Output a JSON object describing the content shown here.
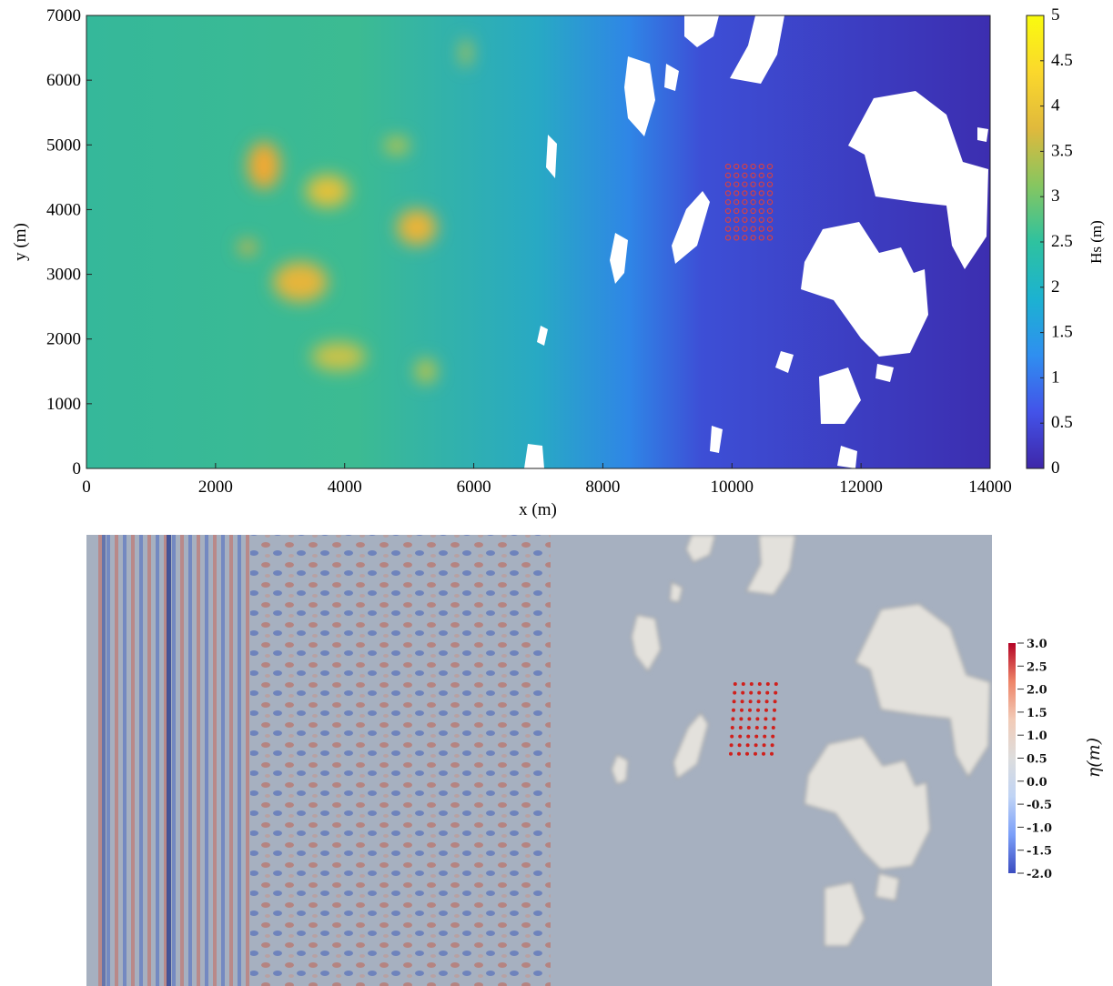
{
  "chart_data": [
    {
      "type": "heatmap",
      "xlabel": "x (m)",
      "ylabel": "y (m)",
      "xlim": [
        0,
        14000
      ],
      "ylim": [
        0,
        7000
      ],
      "xticks": [
        0,
        2000,
        4000,
        6000,
        8000,
        10000,
        12000,
        14000
      ],
      "yticks": [
        0,
        1000,
        2000,
        3000,
        4000,
        5000,
        6000,
        7000
      ],
      "colorbar": {
        "label": "Hs (m)",
        "lim": [
          0,
          5
        ],
        "ticks": [
          0,
          0.5,
          1,
          1.5,
          2,
          2.5,
          3,
          3.5,
          4,
          4.5,
          5
        ],
        "colors": [
          "#3e26a8",
          "#4353e9",
          "#2f8ff0",
          "#1cb2d1",
          "#2ec29f",
          "#86c660",
          "#e0b93c",
          "#fbd82c",
          "#f9fb0e"
        ]
      }
    },
    {
      "type": "heatmap",
      "colorbar": {
        "label": "η(m)",
        "lim": [
          -2.0,
          3.0
        ],
        "ticks": [
          {
            "value": 3.0,
            "label": "3.0"
          },
          {
            "value": 2.5,
            "label": "2.5"
          },
          {
            "value": 2.0,
            "label": "2.0"
          },
          {
            "value": 1.5,
            "label": "1.5"
          },
          {
            "value": 1.0,
            "label": "1.0"
          },
          {
            "value": 0.5,
            "label": "0.5"
          },
          {
            "value": 0.0,
            "label": "0.0"
          },
          {
            "value": -0.5,
            "label": "-0.5"
          },
          {
            "value": -1.0,
            "label": "-1.0"
          },
          {
            "value": -1.5,
            "label": "-1.5"
          },
          {
            "value": -2.0,
            "label": "-2.0"
          }
        ],
        "colors": [
          "#3b4cc0",
          "#7b9ff9",
          "#c0d4f5",
          "#dddddd",
          "#f2cbb7",
          "#ee8468",
          "#b40426"
        ]
      }
    }
  ]
}
